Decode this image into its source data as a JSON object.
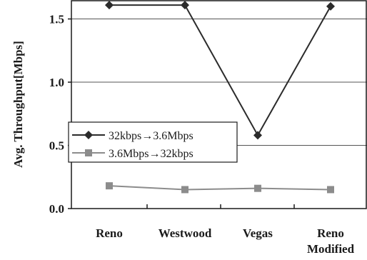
{
  "chart_data": {
    "type": "line",
    "categories": [
      [
        "Reno"
      ],
      [
        "Westwood"
      ],
      [
        "Vegas"
      ],
      [
        "Reno",
        "Modified"
      ]
    ],
    "ylabel": "Avg. Throughput[Mbps]",
    "ylim": [
      0.0,
      1.65
    ],
    "yticks": [
      "0.0",
      "0.5",
      "1.0",
      "1.5"
    ],
    "ytick_values": [
      0.0,
      0.5,
      1.0,
      1.5
    ],
    "grid": true,
    "legend_position": "middle-left",
    "series": [
      {
        "name": "32kbps→3.6Mbps",
        "values": [
          1.61,
          1.61,
          0.58,
          1.6
        ],
        "color": "#2b2b2b",
        "marker": "diamond"
      },
      {
        "name": "3.6Mbps→32kbps",
        "values": [
          0.18,
          0.15,
          0.16,
          0.15
        ],
        "color": "#8c8c8c",
        "marker": "square"
      }
    ]
  }
}
